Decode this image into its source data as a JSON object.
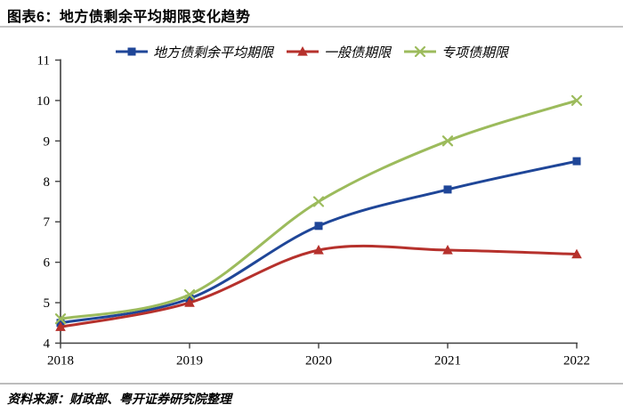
{
  "header": {
    "title": "图表6：地方债剩余平均期限变化趋势"
  },
  "footer": {
    "source": "资料来源：财政部、粤开证券研究院整理"
  },
  "colors": {
    "series_blue": "#1F4698",
    "series_red": "#B6312C",
    "series_green": "#9CBB5C",
    "axis": "#404040",
    "rule": "#C4C4C4"
  },
  "chart_data": {
    "type": "line",
    "title": "地方债剩余平均期限变化趋势",
    "categories": [
      "2018",
      "2019",
      "2020",
      "2021",
      "2022"
    ],
    "series": [
      {
        "name": "地方债剩余平均期限",
        "marker": "square",
        "color": "#1F4698",
        "values": [
          4.5,
          5.1,
          6.9,
          7.8,
          8.5
        ]
      },
      {
        "name": "一般债期限",
        "marker": "triangle",
        "color": "#B6312C",
        "values": [
          4.4,
          5.0,
          6.3,
          6.3,
          6.2
        ]
      },
      {
        "name": "专项债期限",
        "marker": "x",
        "color": "#9CBB5C",
        "values": [
          4.6,
          5.2,
          7.5,
          9.0,
          10.0
        ]
      }
    ],
    "xlabel": "",
    "ylabel": "",
    "ylim": [
      4,
      11
    ],
    "yticks": [
      4,
      5,
      6,
      7,
      8,
      9,
      10,
      11
    ],
    "grid": false,
    "smooth": true,
    "legend_position": "top"
  }
}
